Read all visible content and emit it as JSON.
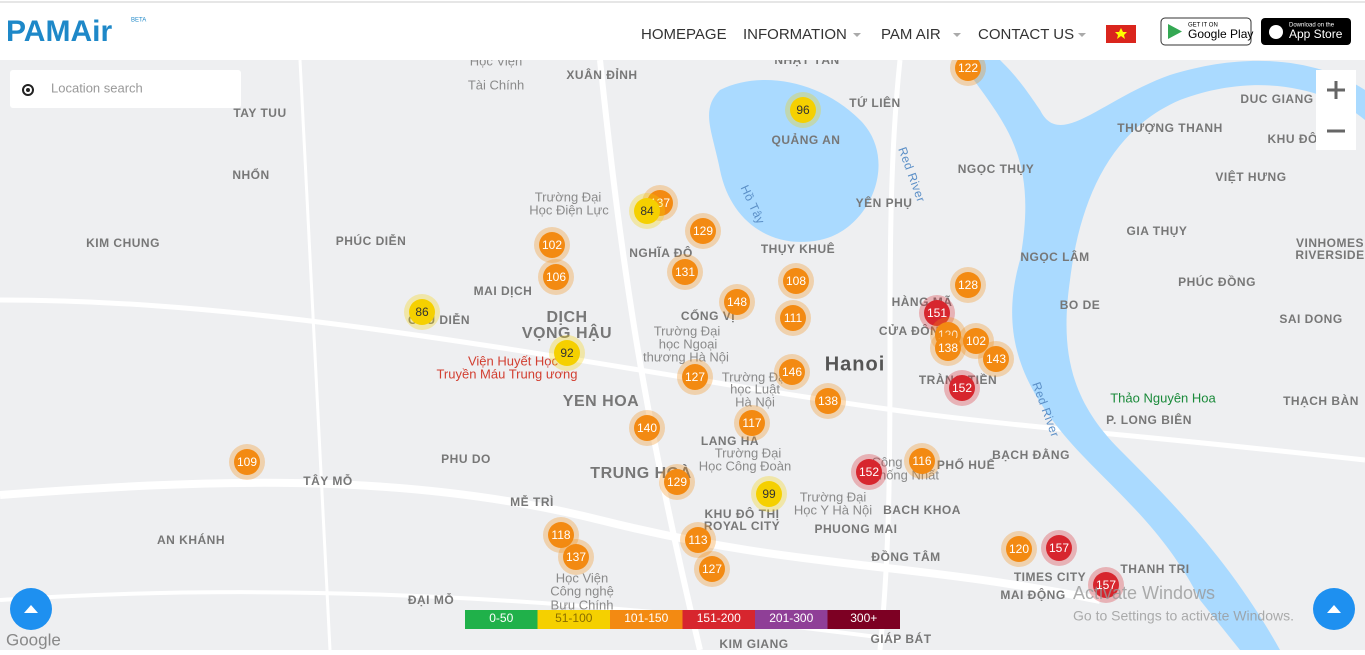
{
  "header": {
    "logo": "PAMAir",
    "beta": "BETA",
    "nav": [
      "HOMEPAGE",
      "INFORMATION",
      "PAM AIR",
      "CONTACT US"
    ],
    "google_play": {
      "small": "GET IT ON",
      "big": "Google Play"
    },
    "app_store": {
      "small": "Download on the",
      "big": "App Store"
    }
  },
  "search": {
    "placeholder": "Location search"
  },
  "map": {
    "labels": [
      "XUÂN ĐỈNH",
      "NHẬT TÂN",
      "TỨ LIÊN",
      "QUẢNG AN",
      "TAY TUU",
      "DUC GIANG",
      "THƯỢNG THANH",
      "KHU ĐÔ THỊ",
      "VIỆT HƯNG",
      "NHỔN",
      "NGỌC THỤY",
      "YÊN PHỤ",
      "KIM CHUNG",
      "PHÚC DIỄN",
      "NGHĨA ĐÔ",
      "THỤY KHUÊ",
      "GIA THỤY",
      "NGỌC LÂM",
      "PHÚC ĐỒNG",
      "VINHOMES",
      "RIVERSIDE",
      "MAI DỊCH",
      "BO DE",
      "SAI DONG",
      "DỊCH",
      "VỌNG HẬU",
      "CỐNG VỊ",
      "HÀNG MÃ",
      "CỬA ĐÔNG",
      "Hanoi",
      "TRÀNG TIỀN",
      "YEN HOA",
      "LANG HA",
      "PHU DO",
      "TRUNG HOÀ",
      "TÂY MỖ",
      "MỄ TRÌ",
      "KHU ĐÔ THỊ",
      "ROYAL CITY",
      "PHUONG MAI",
      "BACH KHOA",
      "PHỐ HUẾ",
      "BẠCH ĐẰNG",
      "P. LONG BIÊN",
      "THẠCH BÀN",
      "AN KHÁNH",
      "ĐỒNG TÂM",
      "TIMES CITY",
      "THANH TRI",
      "MAI ĐỘNG",
      "ĐẠI MỖ",
      "GIÁP BÁT",
      "KIM GIANG",
      "CẦU DIỄN",
      "Hồ Tây",
      "Red River",
      "Red River"
    ],
    "pois": [
      "Viện Huyết Học",
      "Truyền Máu Trung ương",
      "Thảo Nguyên Hoa",
      "Trường Đại",
      "Học Điện Lực",
      "Trường Đại",
      "học Ngoại",
      "thương Hà Nội",
      "Trường Đại",
      "học Luật",
      "Hà Nội",
      "Trường Đại",
      "Học Công Đoàn",
      "Trường Đại",
      "Học Y Hà Nội",
      "Học Viện",
      "Tài Chính",
      "Học Viện",
      "Công nghệ",
      "Bưu Chính",
      "Công",
      "Thống Nhất"
    ],
    "markers": [
      122,
      96,
      137,
      84,
      129,
      102,
      106,
      131,
      108,
      148,
      111,
      128,
      151,
      120,
      138,
      102,
      143,
      86,
      92,
      127,
      146,
      138,
      152,
      140,
      117,
      116,
      152,
      109,
      129,
      99,
      118,
      137,
      113,
      127,
      120,
      157,
      157
    ]
  },
  "legend": [
    {
      "label": "0-50",
      "color": "#20b14a"
    },
    {
      "label": "51-100",
      "color": "#f5d000"
    },
    {
      "label": "101-150",
      "color": "#f38a12"
    },
    {
      "label": "151-200",
      "color": "#d7262e"
    },
    {
      "label": "201-300",
      "color": "#8f3f97"
    },
    {
      "label": "300+",
      "color": "#7d0023"
    }
  ],
  "footer": {
    "google": "Google",
    "activate": "Activate Windows",
    "activate_sub": "Go to Settings to activate Windows."
  }
}
